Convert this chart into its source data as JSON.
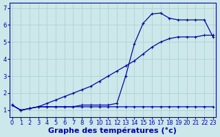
{
  "xlabel": "Graphe des températures (°c)",
  "background_color": "#cce8ea",
  "grid_color": "#aacccc",
  "line_color": "#0000aa",
  "x_ticks": [
    0,
    1,
    2,
    3,
    4,
    5,
    6,
    7,
    8,
    9,
    10,
    11,
    12,
    13,
    14,
    15,
    16,
    17,
    18,
    19,
    20,
    21,
    22,
    23
  ],
  "y_ticks": [
    1,
    2,
    3,
    4,
    5,
    6,
    7
  ],
  "xlim": [
    -0.3,
    23.3
  ],
  "ylim": [
    0.6,
    7.3
  ],
  "line1_x": [
    0,
    1,
    2,
    3,
    4,
    5,
    6,
    7,
    8,
    9,
    10,
    11,
    12,
    13,
    14,
    15,
    16,
    17,
    18,
    19,
    20,
    21,
    22,
    23
  ],
  "line1_y": [
    1.3,
    1.0,
    1.1,
    1.2,
    1.2,
    1.2,
    1.2,
    1.2,
    1.2,
    1.2,
    1.2,
    1.2,
    1.2,
    1.2,
    1.2,
    1.2,
    1.2,
    1.2,
    1.2,
    1.2,
    1.2,
    1.2,
    1.2,
    1.2
  ],
  "line2_x": [
    0,
    1,
    2,
    3,
    4,
    5,
    6,
    7,
    8,
    9,
    10,
    11,
    12,
    13,
    14,
    15,
    16,
    17,
    18,
    19,
    20,
    21,
    22,
    23
  ],
  "line2_y": [
    1.3,
    1.0,
    1.1,
    1.2,
    1.4,
    1.6,
    1.8,
    2.0,
    2.2,
    2.4,
    2.7,
    3.0,
    3.3,
    3.6,
    3.9,
    4.3,
    4.7,
    5.0,
    5.2,
    5.3,
    5.3,
    5.3,
    5.4,
    5.4
  ],
  "line3_x": [
    0,
    1,
    2,
    3,
    4,
    5,
    6,
    7,
    8,
    9,
    10,
    11,
    12,
    13,
    14,
    15,
    16,
    17,
    18,
    19,
    20,
    21,
    22,
    23
  ],
  "line3_y": [
    1.3,
    1.0,
    1.1,
    1.2,
    1.2,
    1.2,
    1.2,
    1.2,
    1.3,
    1.3,
    1.3,
    1.3,
    1.4,
    3.0,
    4.9,
    6.1,
    6.65,
    6.7,
    6.4,
    6.3,
    6.3,
    6.3,
    6.3,
    5.3
  ],
  "xlabel_fontsize": 8,
  "tick_fontsize": 6
}
